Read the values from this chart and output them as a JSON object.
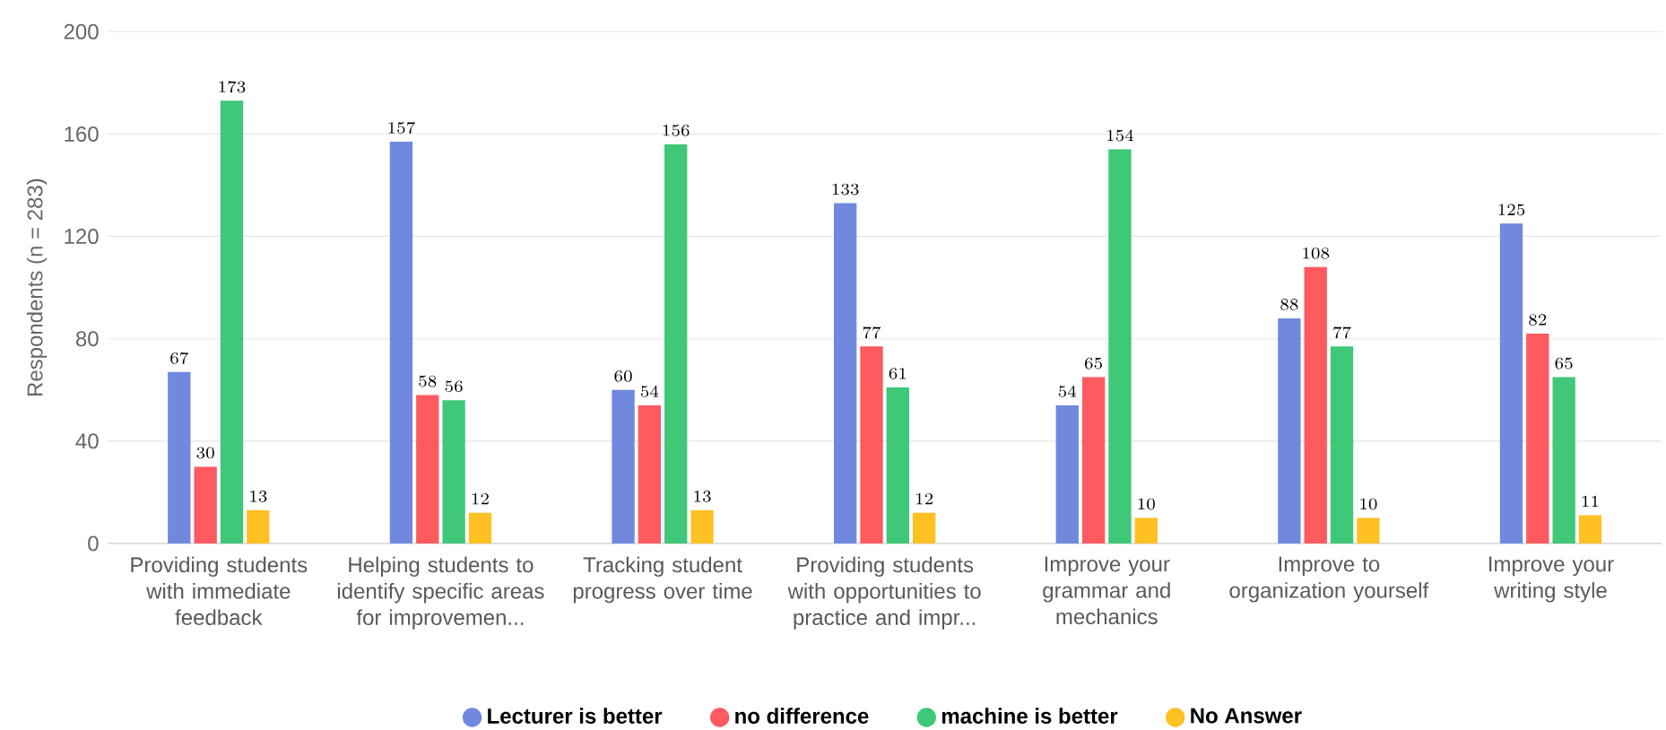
{
  "chart_data": {
    "type": "bar",
    "ylabel": "Respondents (n = 283)",
    "categories": [
      "Providing students with immediate feedback",
      "Helping students to identify specific areas for improvemen...",
      "Tracking student progress over time",
      "Providing students with opportunities to practice and impr...",
      "Improve your grammar and mechanics",
      "Improve to organization yourself",
      "Improve your writing style"
    ],
    "series": [
      {
        "name": "Lecturer is better",
        "color": "#7089de",
        "values": [
          67,
          157,
          60,
          133,
          54,
          88,
          125
        ]
      },
      {
        "name": "no difference",
        "color": "#ff5a5f",
        "values": [
          30,
          58,
          54,
          77,
          65,
          108,
          82
        ]
      },
      {
        "name": "machine is better",
        "color": "#3ec878",
        "values": [
          173,
          56,
          156,
          61,
          154,
          77,
          65
        ]
      },
      {
        "name": "No Answer",
        "color": "#ffc022",
        "values": [
          13,
          12,
          13,
          12,
          10,
          10,
          11
        ]
      }
    ],
    "ylim": [
      0,
      200
    ],
    "yticks": [
      0,
      40,
      80,
      120,
      160,
      200
    ],
    "grid": "y",
    "legend": "bottom",
    "data_labels": true
  }
}
